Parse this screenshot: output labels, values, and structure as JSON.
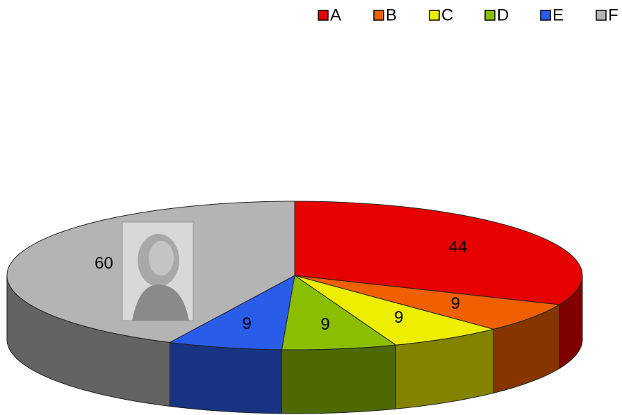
{
  "chart_data": {
    "type": "pie3d",
    "categories": [
      "A",
      "B",
      "C",
      "D",
      "E",
      "F"
    ],
    "values": [
      44,
      9,
      9,
      9,
      9,
      60
    ],
    "colors": [
      "#e60000",
      "#f06000",
      "#eeee00",
      "#8cbe00",
      "#2a5cea",
      "#b4b4b4"
    ],
    "legend": "top-right"
  }
}
